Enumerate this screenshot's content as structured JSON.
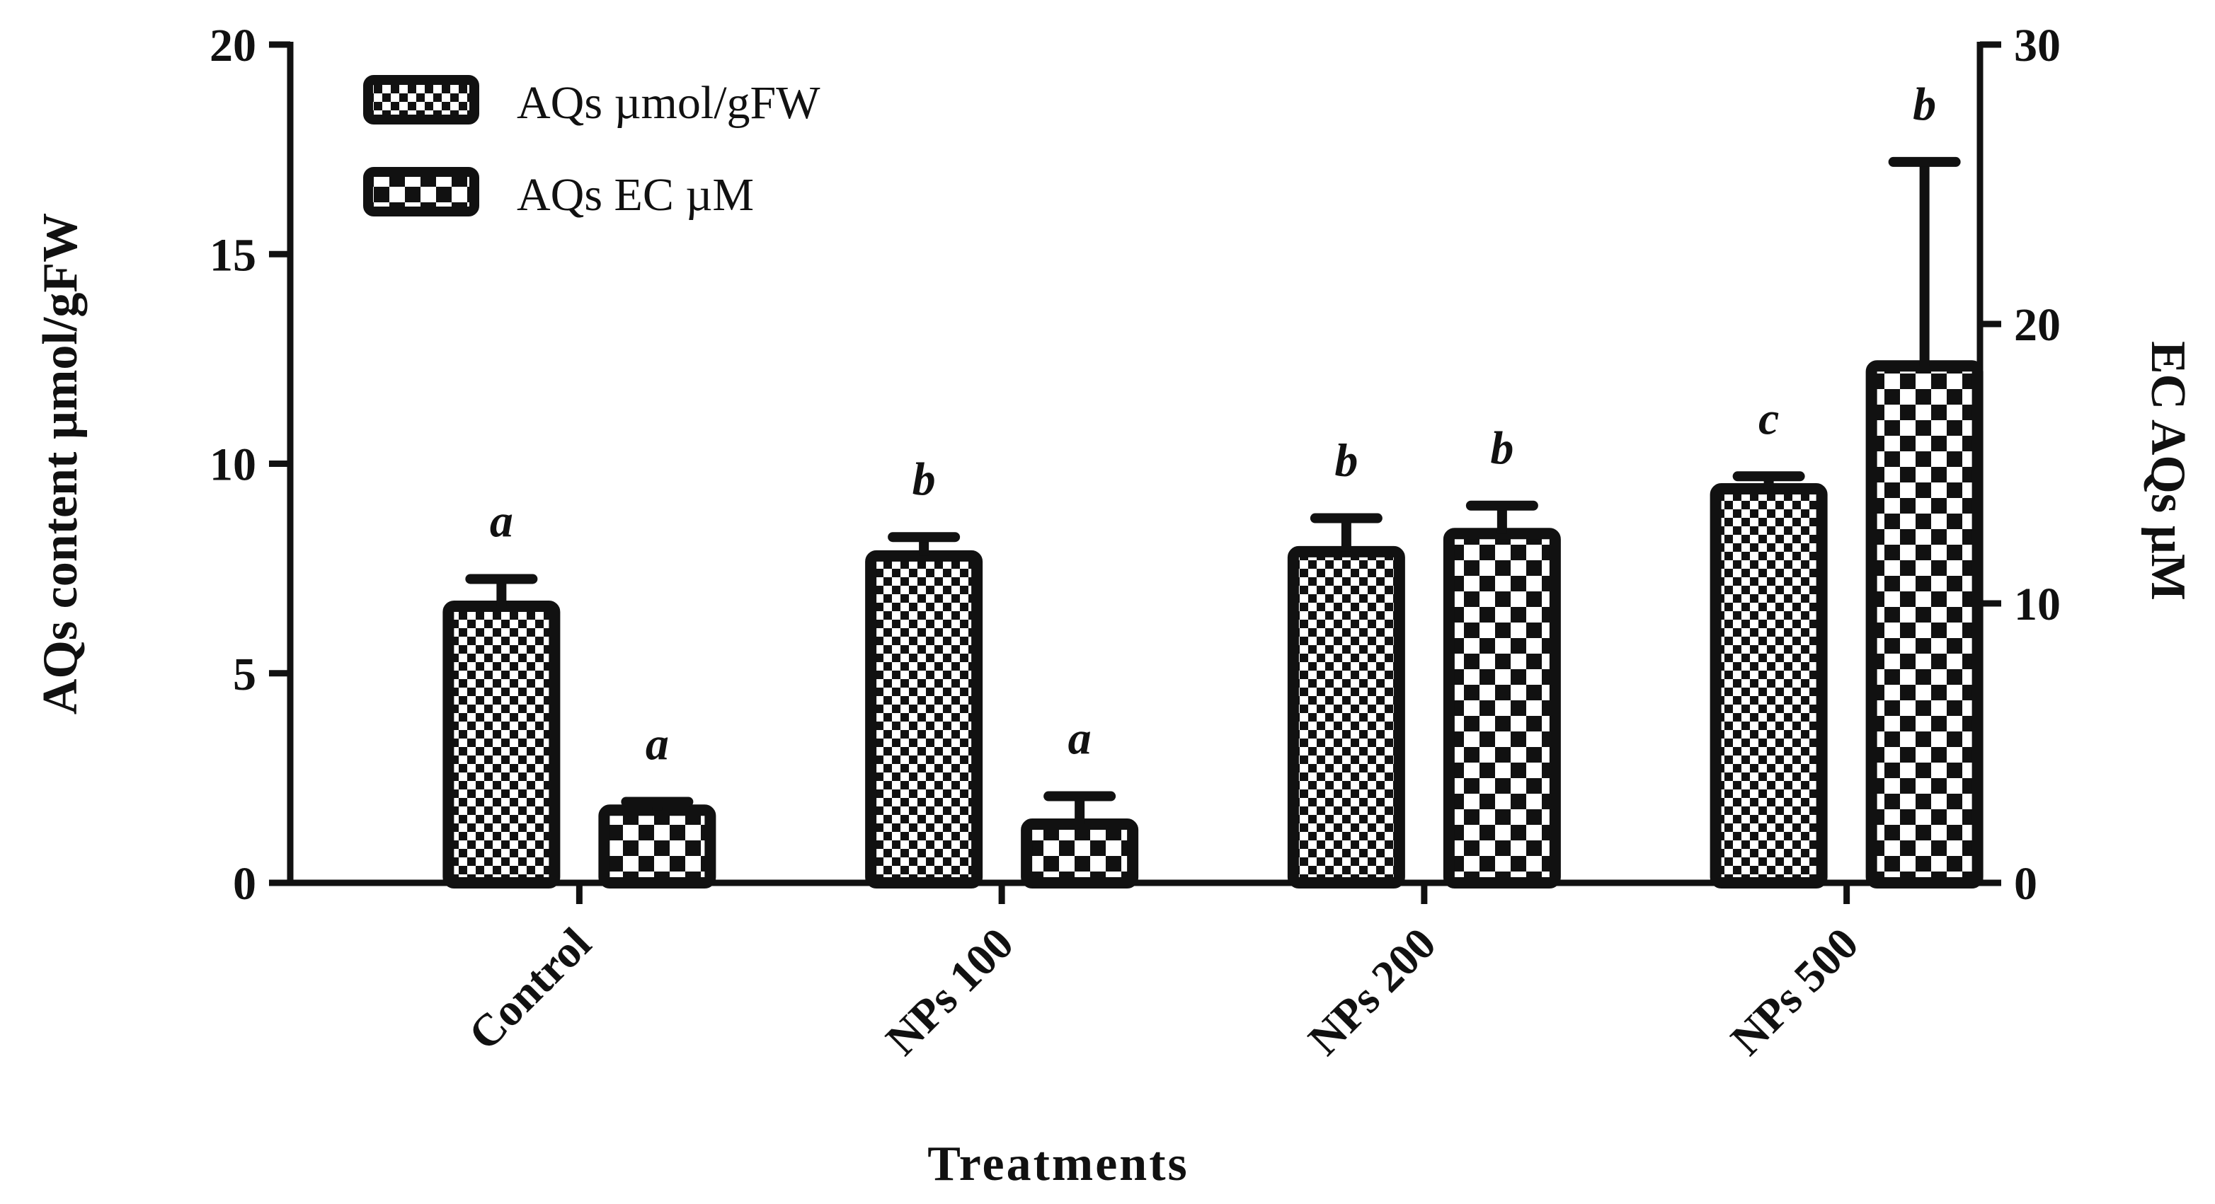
{
  "chart_data": {
    "type": "bar",
    "categories": [
      "Control",
      "NPs 100",
      "NPs 200",
      "NPs 500"
    ],
    "xlabel": "Treatments",
    "ylabel_left": "AQs content  µmol/gFW",
    "ylabel_right": "EC AQs µM",
    "ylim_left": [
      0,
      20
    ],
    "ylim_right": [
      0,
      30
    ],
    "yticks_left": [
      0,
      5,
      10,
      15,
      20
    ],
    "yticks_right": [
      0,
      10,
      20,
      30
    ],
    "ytick_labels_left": [
      "0",
      "5",
      "10",
      "15",
      "20"
    ],
    "ytick_labels_right": [
      "0",
      "10",
      "20",
      "30"
    ],
    "legend_position": "top-left",
    "series": [
      {
        "name": "AQs µmol/gFW",
        "axis": "left",
        "pattern": "fine-checker",
        "values": [
          6.6,
          7.8,
          7.9,
          9.4
        ],
        "errors": [
          0.65,
          0.45,
          0.8,
          0.3
        ],
        "significance": [
          "a",
          "b",
          "b",
          "c"
        ]
      },
      {
        "name": "AQs EC µM",
        "axis": "right",
        "pattern": "coarse-checker",
        "values": [
          2.6,
          2.1,
          12.5,
          18.5
        ],
        "errors": [
          0.3,
          1.0,
          1.0,
          7.3
        ],
        "significance": [
          "a",
          "a",
          "b",
          "b"
        ]
      }
    ]
  }
}
